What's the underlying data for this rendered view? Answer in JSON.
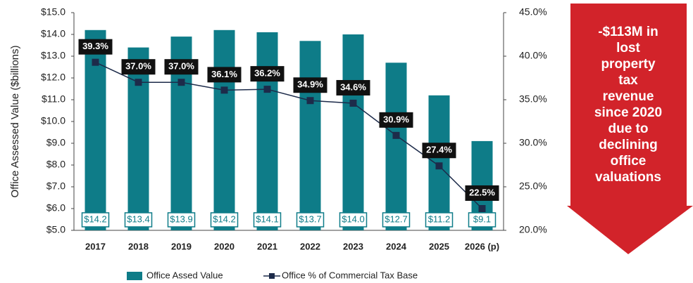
{
  "chart_data": {
    "type": "bar",
    "y_label": "Office Assessed Value ($billions)",
    "categories": [
      "2017",
      "2018",
      "2019",
      "2020",
      "2021",
      "2022",
      "2023",
      "2024",
      "2025",
      "2026 (p)"
    ],
    "series": [
      {
        "name": "Office Assed Value",
        "type": "bar",
        "color": "#0e7c88",
        "values": [
          14.2,
          13.4,
          13.9,
          14.2,
          14.1,
          13.7,
          14.0,
          12.7,
          11.2,
          9.1
        ],
        "value_labels": [
          "$14.2",
          "$13.4",
          "$13.9",
          "$14.2",
          "$14.1",
          "$13.7",
          "$14.0",
          "$12.7",
          "$11.2",
          "$9.1"
        ]
      },
      {
        "name": "Office % of Commercial Tax Base",
        "type": "line",
        "axis": "y2",
        "color": "#1d2b4a",
        "values": [
          39.3,
          37.0,
          37.0,
          36.1,
          36.2,
          34.9,
          34.6,
          30.9,
          27.4,
          22.5
        ],
        "value_labels": [
          "39.3%",
          "37.0%",
          "37.0%",
          "36.1%",
          "36.2%",
          "34.9%",
          "34.6%",
          "30.9%",
          "27.4%",
          "22.5%"
        ]
      }
    ],
    "ylim": [
      5,
      15
    ],
    "yticks": [
      {
        "value": 5,
        "label": "$5.0"
      },
      {
        "value": 6,
        "label": "$6.0"
      },
      {
        "value": 7,
        "label": "$7.0"
      },
      {
        "value": 8,
        "label": "$8.0"
      },
      {
        "value": 9,
        "label": "$9.0"
      },
      {
        "value": 10,
        "label": "$10.0"
      },
      {
        "value": 11,
        "label": "$11.0"
      },
      {
        "value": 12,
        "label": "$12.0"
      },
      {
        "value": 13,
        "label": "$13.0"
      },
      {
        "value": 14,
        "label": "$14.0"
      },
      {
        "value": 15,
        "label": "$15.0"
      }
    ],
    "y2lim": [
      20,
      45
    ],
    "y2ticks": [
      {
        "value": 20,
        "label": "20.0%"
      },
      {
        "value": 25,
        "label": "25.0%"
      },
      {
        "value": 30,
        "label": "30.0%"
      },
      {
        "value": 35,
        "label": "35.0%"
      },
      {
        "value": 40,
        "label": "40.0%"
      },
      {
        "value": 45,
        "label": "45.0%"
      }
    ],
    "annotation": "-$113M in lost property tax revenue since 2020 due to declining office valuations",
    "annotation_color": "#d2232a"
  }
}
